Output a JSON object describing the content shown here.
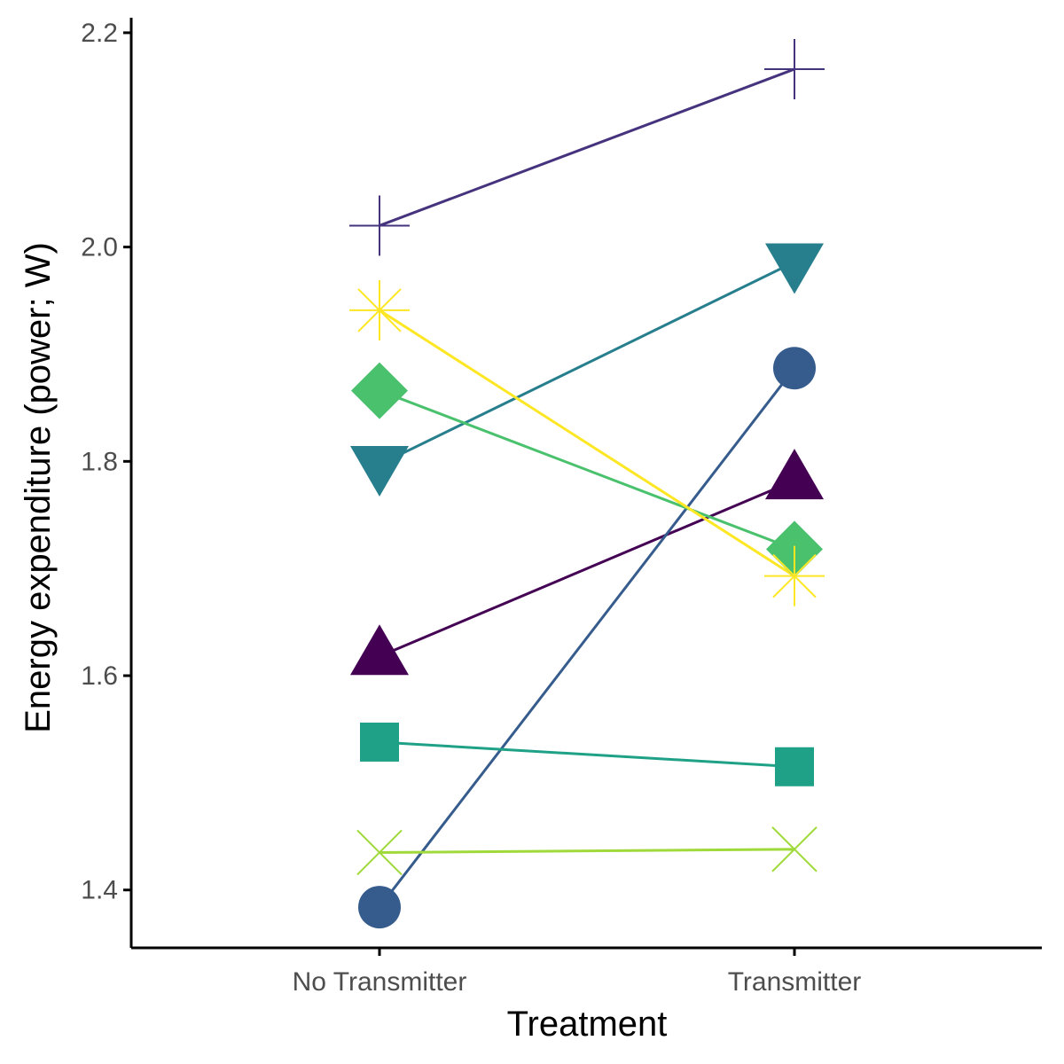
{
  "chart_data": {
    "type": "line",
    "title": "",
    "xlabel": "Treatment",
    "ylabel": "Energy expenditure (power; W)",
    "categories": [
      "No Transmitter",
      "Transmitter"
    ],
    "ylim": [
      1.346,
      2.214
    ],
    "yticks": [
      "1.4",
      "1.6",
      "1.8",
      "2.0",
      "2.2"
    ],
    "grid": false,
    "legend": "none",
    "series": [
      {
        "values": [
          1.618,
          1.782
        ],
        "color": "#440154",
        "shape": "triangle-up"
      },
      {
        "values": [
          2.02,
          2.166
        ],
        "color": "#46337E",
        "shape": "plus"
      },
      {
        "values": [
          1.384,
          1.887
        ],
        "color": "#365C8D",
        "shape": "circle"
      },
      {
        "values": [
          1.797,
          1.986
        ],
        "color": "#277F8E",
        "shape": "triangle-down"
      },
      {
        "values": [
          1.538,
          1.515
        ],
        "color": "#1FA187",
        "shape": "square"
      },
      {
        "values": [
          1.866,
          1.718
        ],
        "color": "#4AC16D",
        "shape": "diamond"
      },
      {
        "values": [
          1.435,
          1.438
        ],
        "color": "#9FDA3A",
        "shape": "cross"
      },
      {
        "values": [
          1.941,
          1.693
        ],
        "color": "#FDE725",
        "shape": "asterisk"
      }
    ]
  }
}
